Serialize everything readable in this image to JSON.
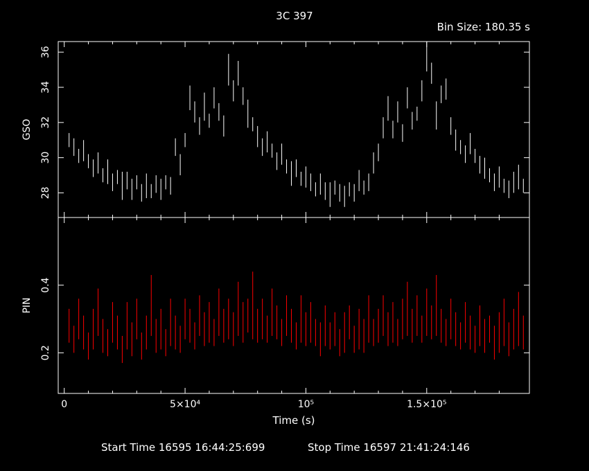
{
  "title": "3C 397",
  "bin_size_label": "Bin Size: 180.35 s",
  "footer": {
    "start_time": "Start Time 16595 16:44:25:699",
    "stop_time": "Stop Time 16597 21:41:24:146"
  },
  "colors": {
    "background": "#000000",
    "axes": "#ffffff",
    "gso": "#ffffff",
    "pin": "#ff0000"
  },
  "chart_data": [
    {
      "type": "scatter",
      "style": "error-bars",
      "ylabel": "GSO",
      "xlim": [
        -2500,
        192500
      ],
      "ylim": [
        26.6,
        36.6
      ],
      "yticks": [
        "28",
        "30",
        "32",
        "34",
        "36"
      ],
      "grid": false,
      "x": [
        2000,
        4000,
        6000,
        8000,
        10000,
        12000,
        14000,
        16000,
        18000,
        20000,
        22000,
        24000,
        26000,
        28000,
        30000,
        32000,
        34000,
        36000,
        38000,
        40000,
        42000,
        44000,
        46000,
        48000,
        50000,
        52000,
        54000,
        56000,
        58000,
        60000,
        62000,
        64000,
        66000,
        68000,
        70000,
        72000,
        74000,
        76000,
        78000,
        80000,
        82000,
        84000,
        86000,
        88000,
        90000,
        92000,
        94000,
        96000,
        98000,
        100000,
        102000,
        104000,
        106000,
        108000,
        110000,
        112000,
        114000,
        116000,
        118000,
        120000,
        122000,
        124000,
        126000,
        128000,
        130000,
        132000,
        134000,
        136000,
        138000,
        140000,
        142000,
        144000,
        146000,
        148000,
        150000,
        152000,
        154000,
        156000,
        158000,
        160000,
        162000,
        164000,
        166000,
        168000,
        170000,
        172000,
        174000,
        176000,
        178000,
        180000,
        182000,
        184000,
        186000,
        188000,
        190000
      ],
      "y": [
        31.0,
        30.6,
        30.1,
        30.4,
        29.8,
        29.4,
        29.7,
        29.0,
        29.2,
        28.6,
        28.9,
        28.4,
        28.7,
        28.2,
        28.6,
        28.0,
        28.4,
        28.1,
        28.5,
        28.2,
        28.6,
        28.4,
        30.6,
        29.6,
        31.0,
        33.4,
        32.6,
        31.8,
        32.9,
        32.1,
        33.4,
        32.6,
        31.8,
        35.0,
        33.8,
        34.8,
        33.5,
        32.5,
        31.9,
        31.2,
        30.6,
        30.9,
        30.4,
        29.8,
        30.2,
        29.5,
        29.1,
        29.4,
        28.8,
        28.9,
        28.6,
        28.2,
        28.5,
        28.1,
        27.9,
        28.3,
        28.0,
        27.8,
        28.2,
        28.0,
        28.7,
        28.3,
        28.6,
        29.7,
        30.3,
        31.7,
        32.8,
        31.6,
        32.6,
        31.4,
        33.4,
        32.1,
        32.5,
        33.8,
        35.8,
        34.8,
        32.4,
        33.6,
        33.9,
        31.8,
        31.0,
        30.6,
        30.2,
        30.8,
        30.1,
        29.6,
        29.4,
        29.0,
        28.6,
        28.9,
        28.4,
        28.2,
        28.6,
        28.9,
        28.4
      ],
      "err": [
        0.4,
        0.5,
        0.4,
        0.6,
        0.4,
        0.5,
        0.6,
        0.4,
        0.7,
        0.5,
        0.4,
        0.8,
        0.5,
        0.6,
        0.4,
        0.5,
        0.7,
        0.4,
        0.5,
        0.6,
        0.4,
        0.5,
        0.5,
        0.6,
        0.4,
        0.7,
        0.6,
        0.5,
        0.8,
        0.4,
        0.6,
        0.5,
        0.6,
        0.9,
        0.6,
        0.7,
        0.5,
        0.8,
        0.4,
        0.6,
        0.5,
        0.6,
        0.4,
        0.5,
        0.6,
        0.4,
        0.7,
        0.5,
        0.4,
        0.6,
        0.5,
        0.4,
        0.6,
        0.5,
        0.7,
        0.4,
        0.5,
        0.6,
        0.4,
        0.5,
        0.6,
        0.4,
        0.5,
        0.6,
        0.5,
        0.6,
        0.7,
        0.5,
        0.6,
        0.5,
        0.6,
        0.5,
        0.4,
        0.6,
        0.9,
        0.6,
        0.8,
        0.5,
        0.6,
        0.5,
        0.6,
        0.4,
        0.5,
        0.6,
        0.4,
        0.5,
        0.6,
        0.4,
        0.5,
        0.6,
        0.4,
        0.5,
        0.6,
        0.7,
        0.4
      ]
    },
    {
      "type": "scatter",
      "style": "error-bars",
      "ylabel": "PIN",
      "xlabel": "Time (s)",
      "xlim": [
        -2500,
        192500
      ],
      "ylim": [
        0.08,
        0.6
      ],
      "yticks": [
        "0.2",
        "0.4"
      ],
      "xticks": [
        "0",
        "5×10⁴",
        "10⁵",
        "1.5×10⁵"
      ],
      "grid": false,
      "x": [
        2000,
        4000,
        6000,
        8000,
        10000,
        12000,
        14000,
        16000,
        18000,
        20000,
        22000,
        24000,
        26000,
        28000,
        30000,
        32000,
        34000,
        36000,
        38000,
        40000,
        42000,
        44000,
        46000,
        48000,
        50000,
        52000,
        54000,
        56000,
        58000,
        60000,
        62000,
        64000,
        66000,
        68000,
        70000,
        72000,
        74000,
        76000,
        78000,
        80000,
        82000,
        84000,
        86000,
        88000,
        90000,
        92000,
        94000,
        96000,
        98000,
        100000,
        102000,
        104000,
        106000,
        108000,
        110000,
        112000,
        114000,
        116000,
        118000,
        120000,
        122000,
        124000,
        126000,
        128000,
        130000,
        132000,
        134000,
        136000,
        138000,
        140000,
        142000,
        144000,
        146000,
        148000,
        150000,
        152000,
        154000,
        156000,
        158000,
        160000,
        162000,
        164000,
        166000,
        168000,
        170000,
        172000,
        174000,
        176000,
        178000,
        180000,
        182000,
        184000,
        186000,
        188000,
        190000
      ],
      "y": [
        0.28,
        0.24,
        0.3,
        0.26,
        0.22,
        0.27,
        0.32,
        0.25,
        0.23,
        0.29,
        0.26,
        0.21,
        0.28,
        0.24,
        0.3,
        0.22,
        0.26,
        0.34,
        0.25,
        0.27,
        0.23,
        0.29,
        0.26,
        0.24,
        0.3,
        0.28,
        0.25,
        0.31,
        0.27,
        0.29,
        0.26,
        0.32,
        0.28,
        0.3,
        0.27,
        0.33,
        0.29,
        0.31,
        0.34,
        0.28,
        0.3,
        0.27,
        0.32,
        0.29,
        0.26,
        0.31,
        0.28,
        0.25,
        0.3,
        0.27,
        0.29,
        0.26,
        0.24,
        0.28,
        0.25,
        0.27,
        0.23,
        0.26,
        0.29,
        0.24,
        0.27,
        0.25,
        0.3,
        0.26,
        0.28,
        0.31,
        0.27,
        0.29,
        0.26,
        0.3,
        0.33,
        0.28,
        0.31,
        0.27,
        0.32,
        0.29,
        0.34,
        0.28,
        0.26,
        0.3,
        0.27,
        0.25,
        0.29,
        0.26,
        0.24,
        0.28,
        0.25,
        0.27,
        0.23,
        0.26,
        0.29,
        0.24,
        0.27,
        0.3,
        0.26
      ],
      "err": [
        0.05,
        0.04,
        0.06,
        0.05,
        0.04,
        0.06,
        0.07,
        0.05,
        0.04,
        0.06,
        0.05,
        0.04,
        0.07,
        0.05,
        0.06,
        0.04,
        0.05,
        0.09,
        0.05,
        0.06,
        0.04,
        0.07,
        0.05,
        0.04,
        0.06,
        0.05,
        0.04,
        0.06,
        0.05,
        0.06,
        0.04,
        0.07,
        0.05,
        0.06,
        0.05,
        0.08,
        0.06,
        0.05,
        0.1,
        0.05,
        0.06,
        0.04,
        0.07,
        0.05,
        0.04,
        0.06,
        0.05,
        0.04,
        0.07,
        0.05,
        0.06,
        0.04,
        0.05,
        0.06,
        0.04,
        0.05,
        0.04,
        0.06,
        0.05,
        0.04,
        0.06,
        0.05,
        0.07,
        0.04,
        0.05,
        0.06,
        0.05,
        0.06,
        0.04,
        0.06,
        0.08,
        0.05,
        0.06,
        0.04,
        0.07,
        0.05,
        0.09,
        0.05,
        0.04,
        0.06,
        0.05,
        0.04,
        0.06,
        0.05,
        0.04,
        0.06,
        0.05,
        0.04,
        0.05,
        0.06,
        0.07,
        0.05,
        0.06,
        0.08,
        0.05
      ]
    }
  ]
}
